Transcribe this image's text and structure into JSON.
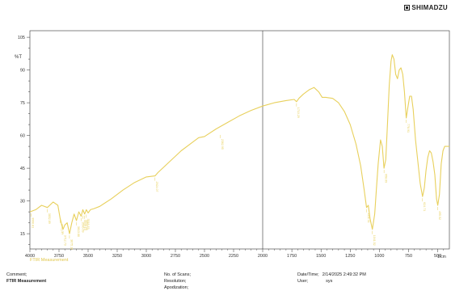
{
  "brand": "SHIMADZU",
  "footer": {
    "comment_label": "Comment;",
    "comment_value": "FTIR Measurement",
    "scans_label": "No. of Scans;",
    "resolution_label": "Resolution;",
    "apodization_label": "Apodization;",
    "datetime_label": "Date/Time;",
    "datetime_value": "2/14/2025 2:49:32 PM",
    "user_label": "User;",
    "user_value": "sys"
  },
  "chart_data": {
    "type": "line",
    "title": "",
    "xlabel": "1/cm",
    "ylabel": "%T",
    "xlim": [
      4000,
      400
    ],
    "ylim": [
      8,
      108
    ],
    "break_at": 2000,
    "x_ticks": [
      4000,
      3750,
      3500,
      3250,
      3000,
      2750,
      2500,
      2250,
      2000,
      1750,
      1500,
      1250,
      1000,
      750,
      500
    ],
    "y_ticks": [
      15,
      30,
      45,
      60,
      75,
      90,
      105
    ],
    "y_axis_unit_label": "%T",
    "series": [
      {
        "name": "FTIR Measurement",
        "color": "#e8d05c",
        "points": [
          [
            4000,
            25
          ],
          [
            3950,
            26
          ],
          [
            3900,
            28
          ],
          [
            3850,
            27
          ],
          [
            3800,
            29.5
          ],
          [
            3760,
            28
          ],
          [
            3740,
            22
          ],
          [
            3715,
            17
          ],
          [
            3700,
            19
          ],
          [
            3680,
            20
          ],
          [
            3660,
            15
          ],
          [
            3640,
            20
          ],
          [
            3620,
            24
          ],
          [
            3600,
            21
          ],
          [
            3580,
            25
          ],
          [
            3560,
            23
          ],
          [
            3545,
            26
          ],
          [
            3530,
            24
          ],
          [
            3515,
            26
          ],
          [
            3500,
            24.5
          ],
          [
            3480,
            26
          ],
          [
            3450,
            26.5
          ],
          [
            3400,
            27.5
          ],
          [
            3300,
            31
          ],
          [
            3200,
            35
          ],
          [
            3100,
            38.5
          ],
          [
            3000,
            41
          ],
          [
            2925,
            41.5
          ],
          [
            2900,
            43
          ],
          [
            2800,
            48
          ],
          [
            2700,
            53
          ],
          [
            2600,
            57
          ],
          [
            2550,
            59
          ],
          [
            2500,
            59.5
          ],
          [
            2400,
            63
          ],
          [
            2300,
            66
          ],
          [
            2200,
            69
          ],
          [
            2100,
            71.5
          ],
          [
            2000,
            73.5
          ],
          [
            1900,
            75
          ],
          [
            1800,
            76
          ],
          [
            1730,
            76.5
          ],
          [
            1710,
            75.5
          ],
          [
            1690,
            77
          ],
          [
            1650,
            79
          ],
          [
            1600,
            81
          ],
          [
            1560,
            82
          ],
          [
            1520,
            80
          ],
          [
            1490,
            77.5
          ],
          [
            1460,
            77.5
          ],
          [
            1400,
            77
          ],
          [
            1350,
            75
          ],
          [
            1300,
            71
          ],
          [
            1250,
            65
          ],
          [
            1200,
            56
          ],
          [
            1160,
            46
          ],
          [
            1130,
            35
          ],
          [
            1110,
            27
          ],
          [
            1095,
            28
          ],
          [
            1080,
            22
          ],
          [
            1060,
            17
          ],
          [
            1040,
            24
          ],
          [
            1025,
            36
          ],
          [
            1010,
            47
          ],
          [
            990,
            58
          ],
          [
            975,
            55
          ],
          [
            960,
            45
          ],
          [
            945,
            49
          ],
          [
            930,
            66
          ],
          [
            915,
            83
          ],
          [
            900,
            94
          ],
          [
            890,
            97
          ],
          [
            875,
            95
          ],
          [
            860,
            88
          ],
          [
            845,
            86
          ],
          [
            830,
            90
          ],
          [
            815,
            91
          ],
          [
            800,
            88
          ],
          [
            785,
            80
          ],
          [
            770,
            68
          ],
          [
            755,
            73
          ],
          [
            740,
            78
          ],
          [
            725,
            78
          ],
          [
            710,
            72
          ],
          [
            690,
            58
          ],
          [
            670,
            48
          ],
          [
            650,
            38
          ],
          [
            630,
            32
          ],
          [
            615,
            36
          ],
          [
            600,
            44
          ],
          [
            585,
            50
          ],
          [
            570,
            53
          ],
          [
            555,
            52
          ],
          [
            540,
            48
          ],
          [
            525,
            42
          ],
          [
            510,
            31
          ],
          [
            500,
            28
          ],
          [
            485,
            33
          ],
          [
            470,
            47
          ],
          [
            455,
            53
          ],
          [
            440,
            55
          ],
          [
            420,
            55
          ],
          [
            400,
            55
          ]
        ]
      }
    ],
    "peak_labels": [
      {
        "x": 3990,
        "y": 25,
        "text": "3990.81"
      },
      {
        "x": 3850,
        "y": 27,
        "text": "3852.89"
      },
      {
        "x": 3740,
        "y": 22,
        "text": "3741.47"
      },
      {
        "x": 3715,
        "y": 17,
        "text": "3712.73"
      },
      {
        "x": 3660,
        "y": 15,
        "text": "3675.10"
      },
      {
        "x": 3600,
        "y": 21,
        "text": "3613.88"
      },
      {
        "x": 3560,
        "y": 23,
        "text": "3566.69"
      },
      {
        "x": 3545,
        "y": 24,
        "text": "3549.13"
      },
      {
        "x": 3530,
        "y": 24,
        "text": "3533.40"
      },
      {
        "x": 3515,
        "y": 24.5,
        "text": "3518.15"
      },
      {
        "x": 2925,
        "y": 41.5,
        "text": "2924.07"
      },
      {
        "x": 2363,
        "y": 61,
        "text": "2362.95"
      },
      {
        "x": 1710,
        "y": 75.5,
        "text": "1710.29"
      },
      {
        "x": 1110,
        "y": 27,
        "text": "1111.11"
      },
      {
        "x": 1060,
        "y": 17,
        "text": "1041.52"
      },
      {
        "x": 960,
        "y": 45,
        "text": "958.69"
      },
      {
        "x": 770,
        "y": 68,
        "text": "778.91"
      },
      {
        "x": 630,
        "y": 32,
        "text": "624.71"
      },
      {
        "x": 500,
        "y": 28,
        "text": "495.52"
      }
    ]
  }
}
